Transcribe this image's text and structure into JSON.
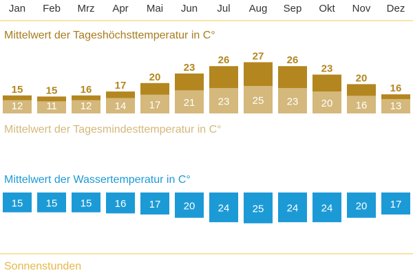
{
  "chart_data": {
    "type": "bar",
    "categories": [
      "Jan",
      "Feb",
      "Mrz",
      "Apr",
      "Mai",
      "Jun",
      "Jul",
      "Aug",
      "Sep",
      "Okt",
      "Nov",
      "Dez"
    ],
    "series": [
      {
        "name": "Mittelwert der Tageshöchsttemperatur in C°",
        "values": [
          15,
          15,
          16,
          17,
          20,
          23,
          26,
          27,
          26,
          23,
          20,
          16
        ],
        "color": "#b3861f"
      },
      {
        "name": "Mittelwert der Tagesmindesttemperatur in C°",
        "values": [
          12,
          11,
          12,
          14,
          17,
          21,
          23,
          25,
          23,
          20,
          16,
          13
        ],
        "color": "#d4b87c"
      },
      {
        "name": "Mittelwert der Wassertemperatur in C°",
        "values": [
          15,
          15,
          15,
          16,
          17,
          20,
          24,
          25,
          24,
          24,
          20,
          17
        ],
        "color": "#1c9ad6"
      }
    ],
    "extra_labels": {
      "sunshine_title": "Sonnenstunden"
    },
    "colors": {
      "month_text": "#333333",
      "rule": "#f2c94c",
      "label_white": "#ffffff"
    }
  }
}
